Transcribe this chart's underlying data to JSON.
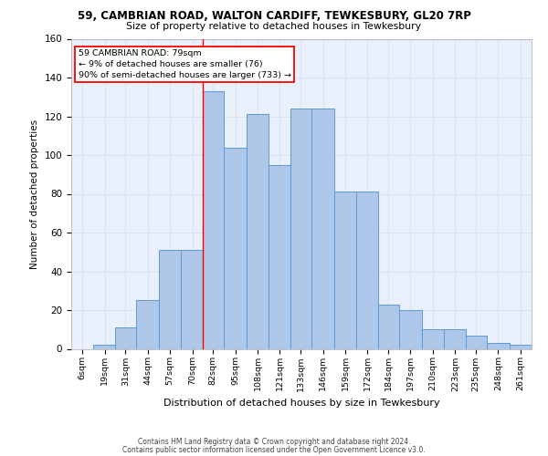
{
  "title_line1": "59, CAMBRIAN ROAD, WALTON CARDIFF, TEWKESBURY, GL20 7RP",
  "title_line2": "Size of property relative to detached houses in Tewkesbury",
  "xlabel": "Distribution of detached houses by size in Tewkesbury",
  "ylabel": "Number of detached properties",
  "footnote1": "Contains HM Land Registry data © Crown copyright and database right 2024.",
  "footnote2": "Contains public sector information licensed under the Open Government Licence v3.0.",
  "bar_labels": [
    "6sqm",
    "19sqm",
    "31sqm",
    "44sqm",
    "57sqm",
    "70sqm",
    "82sqm",
    "95sqm",
    "108sqm",
    "121sqm",
    "133sqm",
    "146sqm",
    "159sqm",
    "172sqm",
    "184sqm",
    "197sqm",
    "210sqm",
    "223sqm",
    "235sqm",
    "248sqm",
    "261sqm"
  ],
  "label_values": [
    6,
    19,
    31,
    44,
    57,
    70,
    82,
    95,
    108,
    121,
    133,
    146,
    159,
    172,
    184,
    197,
    210,
    223,
    235,
    248,
    261
  ],
  "bar_heights": [
    0,
    2,
    11,
    25,
    51,
    51,
    133,
    104,
    121,
    95,
    124,
    124,
    81,
    81,
    23,
    20,
    10,
    10,
    7,
    3,
    2
  ],
  "bar_color": "#aec6e8",
  "bar_edge_color": "#5b9bd5",
  "grid_color": "#d4dff0",
  "background_color": "#eaf0fb",
  "annotation_line1": "59 CAMBRIAN ROAD: 79sqm",
  "annotation_line2": "← 9% of detached houses are smaller (76)",
  "annotation_line3": "90% of semi-detached houses are larger (733) →",
  "annotation_box_color": "white",
  "annotation_box_edge": "red",
  "vline_color": "red",
  "vline_x_label": 82,
  "ylim": [
    0,
    160
  ],
  "yticks": [
    0,
    20,
    40,
    60,
    80,
    100,
    120,
    140,
    160
  ]
}
